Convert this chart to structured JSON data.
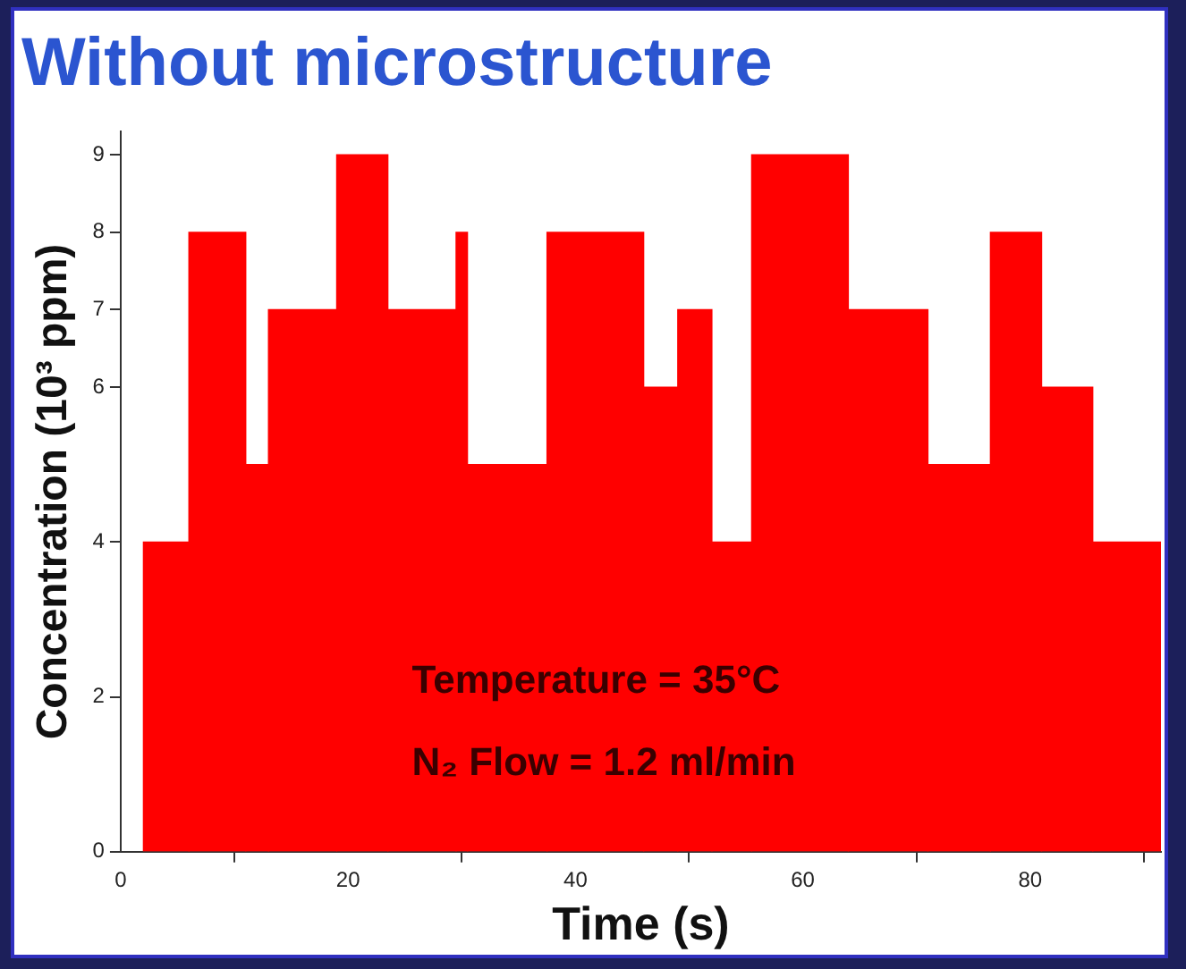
{
  "chart_data": {
    "type": "histogram",
    "title": "Without microstructure",
    "xlabel": "Time (s)",
    "ylabel": "Concentration (10³ ppm)",
    "bins": [
      2,
      6,
      11,
      13,
      19,
      23.5,
      29.5,
      30.5,
      37.5,
      46,
      49,
      52,
      55.5,
      64,
      71,
      76.5,
      81,
      85.5,
      91.5
    ],
    "values": [
      4,
      8,
      5,
      7,
      9,
      7,
      8,
      5,
      8,
      6,
      7,
      4,
      9,
      7,
      5,
      8,
      6,
      4
    ],
    "color": "#ff0000",
    "xlim": [
      0,
      91.5
    ],
    "xticks": [
      0,
      20,
      40,
      60,
      80
    ],
    "ylim": [
      0,
      9.3
    ],
    "yticks": [
      0,
      2,
      4,
      6,
      7,
      8,
      9
    ],
    "annotations": [
      "Temperature = 35°C",
      "N₂ Flow = 1.2 ml/min"
    ],
    "grid": false,
    "legend": false
  }
}
